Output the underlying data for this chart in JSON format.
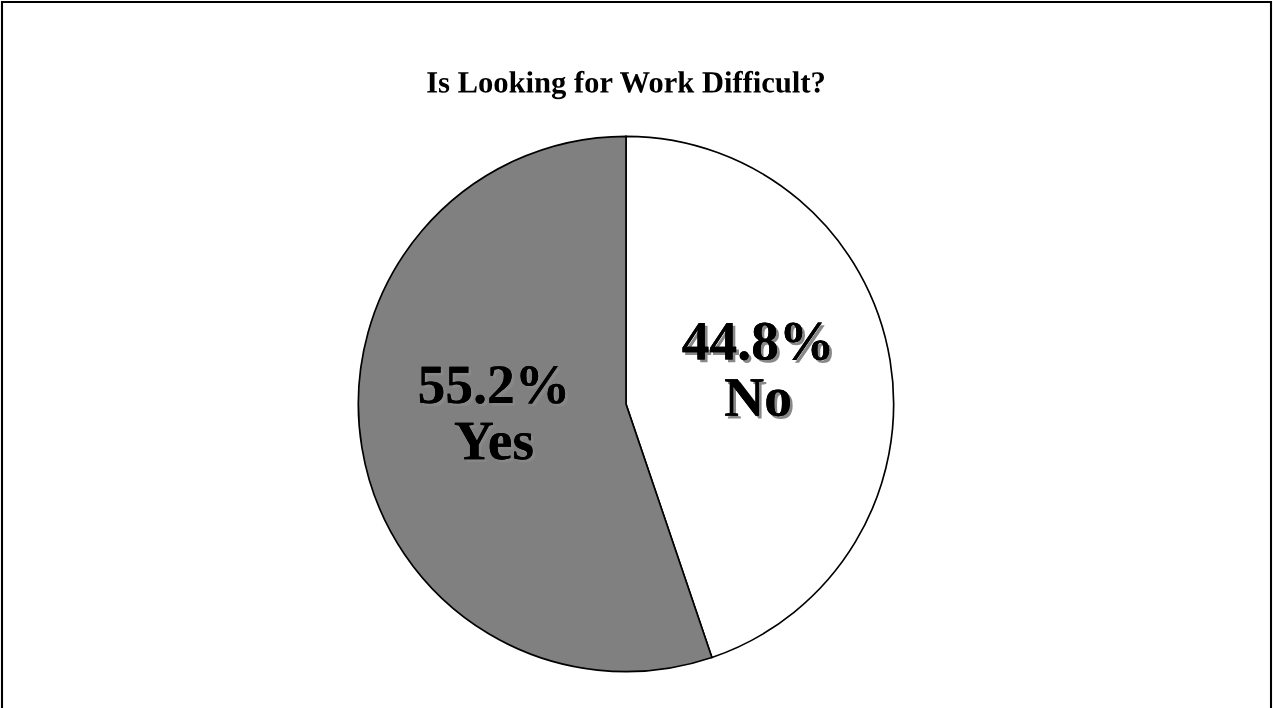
{
  "chart_data": {
    "type": "pie",
    "title": "Is Looking for Work Difficult?",
    "categories": [
      "No",
      "Yes"
    ],
    "values": [
      44.8,
      55.2
    ],
    "colors": [
      "#ffffff",
      "#808080"
    ],
    "value_labels": [
      "44.8%",
      "55.2%"
    ],
    "legend": false
  }
}
